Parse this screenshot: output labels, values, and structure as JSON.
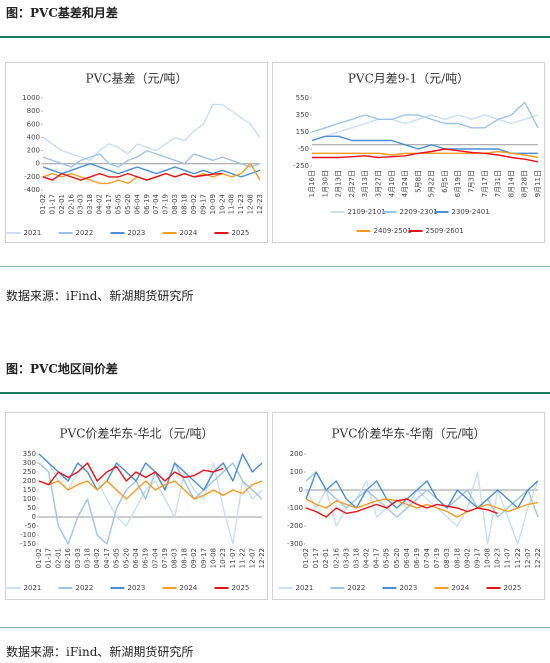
{
  "figures": [
    {
      "title": "图：PVC基差和月差",
      "source": "数据来源：iFind、新湖期货研究所"
    },
    {
      "title": "图：PVC地区间价差",
      "source": "数据来源：iFind、新湖期货研究所"
    }
  ],
  "chart_data": [
    {
      "type": "line",
      "title": "PVC基差（元/吨）",
      "ylim": [
        -400,
        1000
      ],
      "yticks": [
        -400,
        -200,
        0,
        200,
        400,
        600,
        800,
        1000
      ],
      "categories": [
        "01-02",
        "01-17",
        "02-01",
        "02-16",
        "03-03",
        "03-18",
        "04-02",
        "04-17",
        "05-05",
        "05-20",
        "06-04",
        "06-19",
        "07-04",
        "07-19",
        "08-03",
        "08-18",
        "09-02",
        "09-17",
        "10-09",
        "10-24",
        "11-08",
        "11-23",
        "12-08",
        "12-23"
      ],
      "series": [
        {
          "name": "2021",
          "color": "#c9def2",
          "values": [
            400,
            300,
            200,
            150,
            100,
            50,
            200,
            300,
            250,
            150,
            300,
            250,
            200,
            300,
            400,
            350,
            500,
            600,
            900,
            900,
            800,
            700,
            600,
            400
          ]
        },
        {
          "name": "2022",
          "color": "#9dc3e6",
          "values": [
            100,
            50,
            0,
            -50,
            50,
            100,
            150,
            0,
            -50,
            50,
            100,
            200,
            150,
            100,
            50,
            0,
            150,
            100,
            50,
            100,
            50,
            0,
            -50,
            0
          ]
        },
        {
          "name": "2023",
          "color": "#4a8fd4",
          "values": [
            -50,
            -100,
            -150,
            -100,
            -50,
            0,
            -50,
            -100,
            -150,
            -100,
            -50,
            -100,
            -150,
            -100,
            -50,
            -100,
            -150,
            -100,
            -150,
            -100,
            -150,
            -200,
            -150,
            -100
          ]
        },
        {
          "name": "2024",
          "color": "#f39c1f",
          "values": [
            -200,
            -150,
            -200,
            -150,
            -200,
            -250,
            -300,
            -300,
            -250,
            -300,
            -200,
            -250,
            -200,
            -150,
            -200,
            -150,
            -200,
            -150,
            -200,
            -150,
            -200,
            -150,
            0,
            -250
          ]
        },
        {
          "name": "2025",
          "color": "#e8111b",
          "values": [
            -200,
            -250,
            -150,
            -200,
            -250,
            -200,
            -150,
            -200,
            -200,
            -150,
            -200,
            -250,
            -200,
            -150,
            -200,
            -150,
            -200,
            -180,
            -160,
            -150,
            null,
            null,
            null,
            null
          ]
        }
      ]
    },
    {
      "type": "line",
      "title": "PVC月差9-1（元/吨）",
      "ylim": [
        -250,
        550
      ],
      "yticks": [
        -250,
        -50,
        150,
        350,
        550
      ],
      "categories": [
        "1月16日",
        "1月30日",
        "2月13日",
        "2月27日",
        "3月13日",
        "3月27日",
        "4月10日",
        "4月24日",
        "5月8日",
        "5月22日",
        "6月5日",
        "6月19日",
        "7月3日",
        "7月17日",
        "7月31日",
        "8月14日",
        "8月28日",
        "9月11日"
      ],
      "series": [
        {
          "name": "2109-2101",
          "color": "#c9def2",
          "values": [
            50,
            100,
            150,
            200,
            250,
            300,
            300,
            250,
            300,
            350,
            300,
            350,
            300,
            350,
            300,
            250,
            300,
            350
          ]
        },
        {
          "name": "2209-2301",
          "color": "#9dc3e6",
          "values": [
            150,
            200,
            250,
            300,
            350,
            300,
            300,
            350,
            350,
            300,
            250,
            250,
            200,
            200,
            300,
            350,
            500,
            200
          ]
        },
        {
          "name": "2309-2401",
          "color": "#4a8fd4",
          "values": [
            50,
            100,
            100,
            50,
            50,
            50,
            50,
            0,
            -50,
            0,
            -50,
            -50,
            -50,
            -50,
            -50,
            -100,
            -100,
            -100
          ]
        },
        {
          "name": "2409-2501",
          "color": "#f39c1f",
          "values": [
            -100,
            -100,
            -100,
            -100,
            -100,
            -100,
            -120,
            -100,
            -100,
            -100,
            -100,
            -100,
            -100,
            -100,
            -80,
            -100,
            -120,
            -150
          ]
        },
        {
          "name": "2509-2601",
          "color": "#e8111b",
          "values": [
            -150,
            -150,
            -150,
            -140,
            -130,
            -150,
            -140,
            -130,
            -100,
            -80,
            -50,
            -70,
            -90,
            -100,
            -120,
            -150,
            -170,
            -200
          ]
        }
      ]
    },
    {
      "type": "line",
      "title": "PVC价差华东-华北（元/吨）",
      "ylim": [
        -150,
        350
      ],
      "yticks": [
        -150,
        -100,
        -50,
        0,
        50,
        100,
        150,
        200,
        250,
        300,
        350
      ],
      "categories": [
        "01-02",
        "01-17",
        "02-01",
        "02-16",
        "03-03",
        "03-18",
        "04-02",
        "04-17",
        "05-05",
        "05-20",
        "06-04",
        "06-19",
        "07-04",
        "07-19",
        "08-03",
        "08-18",
        "09-02",
        "09-17",
        "10-08",
        "10-23",
        "11-07",
        "11-22",
        "12-07",
        "12-22"
      ],
      "series": [
        {
          "name": "2021",
          "color": "#c9def2",
          "values": [
            350,
            300,
            200,
            150,
            250,
            300,
            200,
            100,
            0,
            -50,
            50,
            150,
            200,
            100,
            0,
            250,
            150,
            100,
            300,
            50,
            -150,
            200,
            100,
            150
          ]
        },
        {
          "name": "2022",
          "color": "#9dc3e6",
          "values": [
            300,
            250,
            -50,
            -150,
            0,
            100,
            -100,
            -150,
            50,
            150,
            200,
            100,
            250,
            150,
            300,
            200,
            100,
            150,
            200,
            250,
            300,
            200,
            150,
            100
          ]
        },
        {
          "name": "2023",
          "color": "#4a8fd4",
          "values": [
            350,
            300,
            250,
            200,
            300,
            250,
            150,
            200,
            300,
            250,
            200,
            300,
            250,
            150,
            300,
            250,
            200,
            150,
            250,
            300,
            200,
            350,
            250,
            300
          ]
        },
        {
          "name": "2024",
          "color": "#f39c1f",
          "values": [
            200,
            180,
            200,
            150,
            180,
            200,
            150,
            200,
            150,
            100,
            150,
            200,
            150,
            180,
            200,
            150,
            100,
            120,
            150,
            120,
            150,
            130,
            180,
            200
          ]
        },
        {
          "name": "2025",
          "color": "#e8111b",
          "values": [
            200,
            180,
            250,
            220,
            250,
            300,
            200,
            250,
            280,
            200,
            250,
            220,
            250,
            200,
            250,
            220,
            230,
            260,
            250,
            270,
            null,
            null,
            null,
            null
          ]
        }
      ]
    },
    {
      "type": "line",
      "title": "PVC价差华东-华南（元/吨）",
      "ylim": [
        -300,
        200
      ],
      "yticks": [
        -300,
        -200,
        -100,
        0,
        100,
        200
      ],
      "categories": [
        "01-02",
        "01-17",
        "02-01",
        "02-16",
        "03-03",
        "03-18",
        "04-02",
        "04-17",
        "05-05",
        "05-20",
        "06-04",
        "06-19",
        "07-04",
        "07-19",
        "08-03",
        "08-18",
        "09-02",
        "09-17",
        "10-08",
        "10-23",
        "11-07",
        "11-22",
        "12-07",
        "12-22"
      ],
      "series": [
        {
          "name": "2021",
          "color": "#c9def2",
          "values": [
            0,
            -100,
            0,
            -200,
            -100,
            -50,
            50,
            -150,
            -100,
            -50,
            -100,
            0,
            -50,
            -100,
            -150,
            -200,
            -100,
            100,
            -300,
            0,
            -150,
            -300,
            -100,
            50
          ]
        },
        {
          "name": "2022",
          "color": "#9dc3e6",
          "values": [
            50,
            100,
            0,
            -50,
            -100,
            -50,
            0,
            -50,
            -100,
            -150,
            -100,
            -50,
            0,
            -50,
            -100,
            -50,
            0,
            -100,
            -50,
            -150,
            -100,
            -50,
            0,
            -150
          ]
        },
        {
          "name": "2023",
          "color": "#4a8fd4",
          "values": [
            -50,
            100,
            0,
            50,
            -50,
            -100,
            0,
            50,
            -50,
            -100,
            -50,
            0,
            50,
            -50,
            -100,
            0,
            -50,
            -100,
            -50,
            0,
            -50,
            -100,
            0,
            50
          ]
        },
        {
          "name": "2024",
          "color": "#f39c1f",
          "values": [
            -50,
            -80,
            -100,
            -60,
            -80,
            -100,
            -80,
            -60,
            -50,
            -60,
            -80,
            -100,
            -80,
            -100,
            -120,
            -150,
            -120,
            -100,
            -80,
            -100,
            -120,
            -100,
            -80,
            -70
          ]
        },
        {
          "name": "2025",
          "color": "#e8111b",
          "values": [
            -100,
            -120,
            -150,
            -100,
            -130,
            -120,
            -100,
            -80,
            -100,
            -60,
            -50,
            -80,
            -100,
            -80,
            -90,
            -100,
            -120,
            -100,
            -110,
            -130,
            null,
            null,
            null,
            null
          ]
        }
      ]
    }
  ]
}
